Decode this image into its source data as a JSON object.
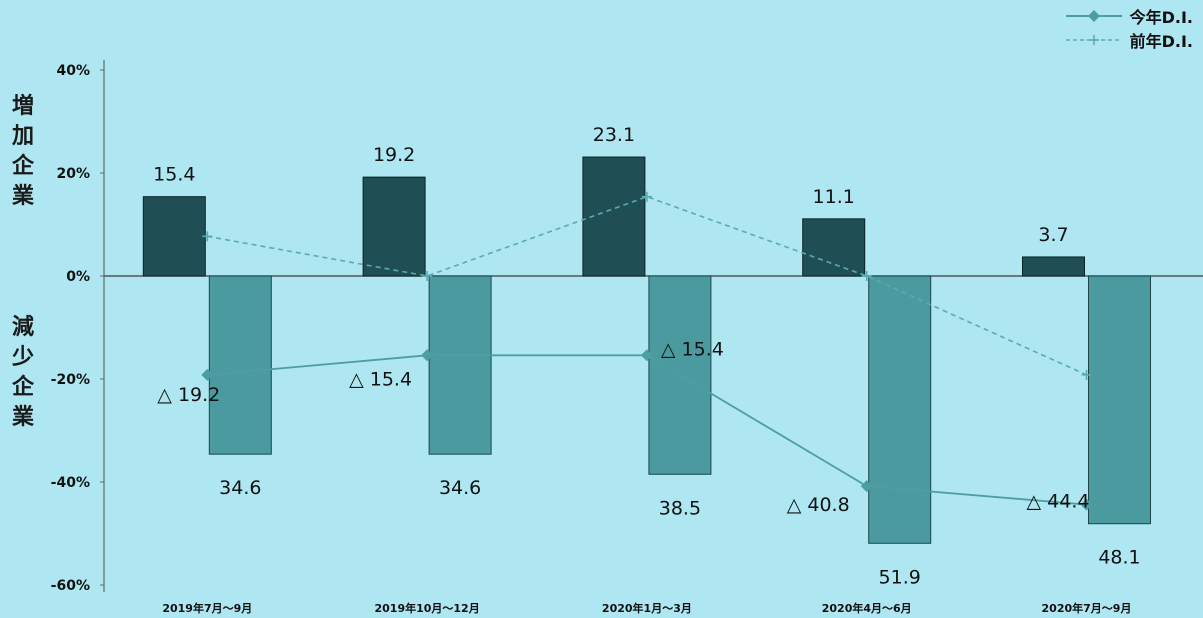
{
  "chart_data": {
    "type": "bar",
    "categories": [
      "2019年7月～9月",
      "2019年10月～12月",
      "2020年1月～3月",
      "2020年4月～6月",
      "2020年7月～9月"
    ],
    "ylim": [
      -60,
      40
    ],
    "yticks": [
      "40%",
      "20%",
      "0%",
      "-20%",
      "-40%",
      "-60%"
    ],
    "ytick_values": [
      40,
      20,
      0,
      -20,
      -40,
      -60
    ],
    "grid": false,
    "legend_position": "top-right",
    "ylabel_upper": [
      "増",
      "加",
      "企",
      "業"
    ],
    "ylabel_lower": [
      "減",
      "少",
      "企",
      "業"
    ],
    "series": [
      {
        "values": [
          15.4,
          19.2,
          23.1,
          11.1,
          3.7
        ],
        "labels": [
          "15.4",
          "19.2",
          "23.1",
          "11.1",
          "3.7"
        ],
        "color": "#1f4f55"
      },
      {
        "values": [
          -34.6,
          -34.6,
          -38.5,
          -51.9,
          -48.1
        ],
        "labels": [
          "34.6",
          "34.6",
          "38.5",
          "51.9",
          "48.1"
        ],
        "color": "#4a9aa0"
      },
      {
        "name": "今年D.I.",
        "values": [
          -19.2,
          -15.4,
          -15.4,
          -40.8,
          -44.4
        ],
        "labels": [
          "△ 19.2",
          "△ 15.4",
          "△ 15.4",
          "△ 40.8",
          "△ 44.4"
        ],
        "color": "#4d9ea3",
        "style": "solid-diamond"
      },
      {
        "name": "前年D.I.",
        "values": [
          7.7,
          0.0,
          15.4,
          0.0,
          -19.2
        ],
        "color": "#5aaab0",
        "style": "dashed-plus"
      }
    ]
  }
}
